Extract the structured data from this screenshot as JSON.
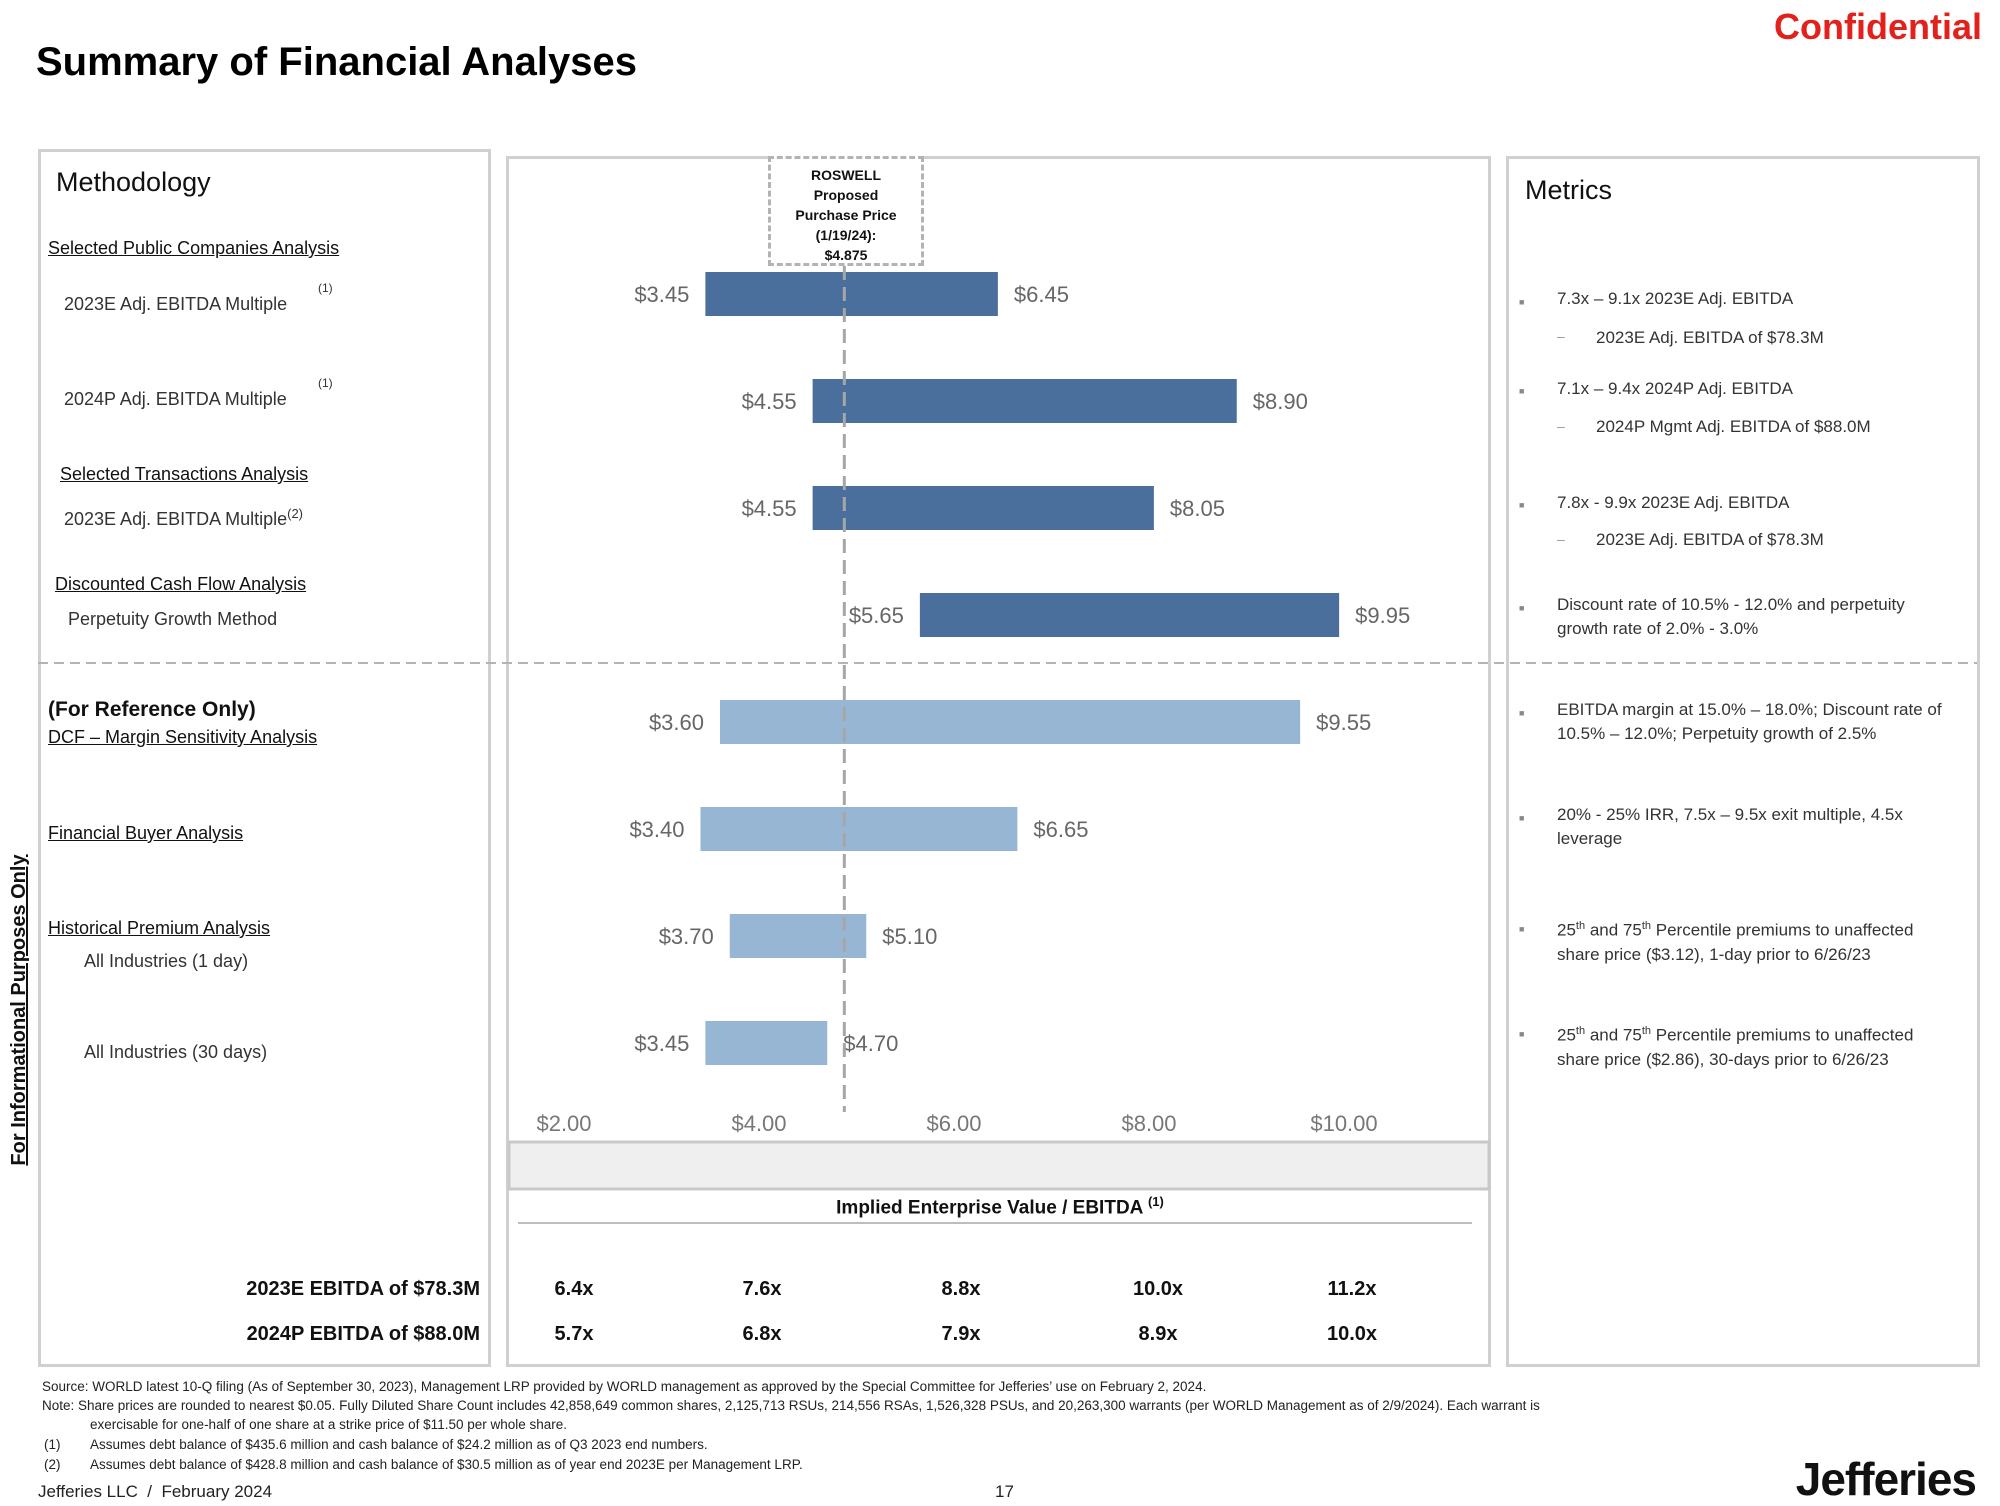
{
  "header": {
    "title": "Summary of Financial Analyses",
    "confidential": "Confidential"
  },
  "side_label": "For Informational Purposes Only",
  "methodology": {
    "title": "Methodology",
    "sections": {
      "public_companies": "Selected Public Companies Analysis",
      "ebitda_2023": "2023E Adj. EBITDA Multiple",
      "ebitda_2023_note": "(1)",
      "ebitda_2024": "2024P Adj. EBITDA Multiple",
      "ebitda_2024_note": "(1)",
      "transactions": "Selected Transactions Analysis",
      "txn_ebitda": "2023E Adj. EBITDA Multiple",
      "txn_ebitda_note": "(2)",
      "dcf": "Discounted Cash Flow Analysis",
      "perpetuity": "Perpetuity Growth Method",
      "reference": "(For Reference Only)",
      "dcf_margin": "DCF – Margin Sensitivity Analysis",
      "financial_buyer": "Financial Buyer Analysis",
      "historical_premium": "Historical Premium Analysis",
      "all_ind_1": "All Industries (1 day)",
      "all_ind_30": "All Industries (30 days)"
    }
  },
  "roswell": {
    "line1": "ROSWELL",
    "line2": "Proposed",
    "line3": "Purchase Price",
    "line4": "(1/19/24):",
    "line5": "$4.875"
  },
  "chart_data": {
    "type": "bar",
    "orientation": "horizontal-range",
    "title": "",
    "xlabel": "Implied Enterprise Value / EBITDA",
    "xlabel_note": "(1)",
    "xlim": [
      2,
      10
    ],
    "x_ticks": [
      "$2.00",
      "$4.00",
      "$6.00",
      "$8.00",
      "$10.00"
    ],
    "x_tick_values": [
      2,
      4,
      6,
      8,
      10
    ],
    "reference_line": {
      "value": 4.875,
      "label": "ROSWELL Proposed Purchase Price (1/19/24): $4.875"
    },
    "categories": [
      "2023E Adj. EBITDA Multiple",
      "2024P Adj. EBITDA Multiple",
      "Selected Transactions 2023E Adj. EBITDA Multiple",
      "DCF Perpetuity Growth Method",
      "DCF – Margin Sensitivity Analysis",
      "Financial Buyer Analysis",
      "Historical Premium All Industries (1 day)",
      "Historical Premium All Industries (30 days)"
    ],
    "series": [
      {
        "name": "low",
        "values": [
          3.45,
          4.55,
          4.55,
          5.65,
          3.6,
          3.4,
          3.7,
          3.45
        ],
        "labels": [
          "$3.45",
          "$4.55",
          "$4.55",
          "$5.65",
          "$3.60",
          "$3.40",
          "$3.70",
          "$3.45"
        ]
      },
      {
        "name": "high",
        "values": [
          6.45,
          8.9,
          8.05,
          9.95,
          9.55,
          6.65,
          5.1,
          4.7
        ],
        "labels": [
          "$6.45",
          "$8.90",
          "$8.05",
          "$9.95",
          "$9.55",
          "$6.65",
          "$5.10",
          "$4.70"
        ]
      }
    ],
    "group": [
      "primary",
      "primary",
      "primary",
      "primary",
      "reference",
      "reference",
      "reference",
      "reference"
    ],
    "colors": {
      "primary": "#4a6f9c",
      "reference": "#97b6d3"
    },
    "multiples": {
      "rows": [
        {
          "label": "2023E EBITDA of $78.3M",
          "values": [
            "6.4x",
            "7.6x",
            "8.8x",
            "10.0x",
            "11.2x"
          ]
        },
        {
          "label": "2024P EBITDA of $88.0M",
          "values": [
            "5.7x",
            "6.8x",
            "7.9x",
            "8.9x",
            "10.0x"
          ]
        }
      ]
    }
  },
  "metrics": {
    "title": "Metrics",
    "items": [
      {
        "main": "7.3x – 9.1x 2023E Adj. EBITDA",
        "sub": "2023E Adj. EBITDA of $78.3M"
      },
      {
        "main": "7.1x – 9.4x 2024P Adj. EBITDA",
        "sub": "2024P Mgmt Adj. EBITDA of $88.0M"
      },
      {
        "main": "7.8x - 9.9x 2023E Adj. EBITDA",
        "sub": "2023E Adj. EBITDA of $78.3M"
      },
      {
        "main": "Discount rate of 10.5% - 12.0% and perpetuity growth rate of 2.0% - 3.0%"
      },
      {
        "main": "EBITDA margin at 15.0% – 18.0%; Discount rate of 10.5% – 12.0%; Perpetuity growth of 2.5%"
      },
      {
        "main": "20% - 25% IRR, 7.5x – 9.5x exit multiple, 4.5x leverage"
      },
      {
        "sup1": "th",
        "sup2": "th",
        "pre": "25",
        "mid": " and 75",
        "post": " Percentile premiums to unaffected share price ($3.12), 1-day prior to 6/26/23"
      },
      {
        "sup1": "th",
        "sup2": "th",
        "pre": "25",
        "mid": " and 75",
        "post": " Percentile premiums to unaffected share price ($2.86), 30-days prior to 6/26/23"
      }
    ],
    "bullet": "■",
    "dash": "–"
  },
  "footer": {
    "source": "Source: WORLD latest 10-Q filing (As of September 30, 2023), Management LRP provided by WORLD management as approved by the Special Committee for Jefferies’ use on February 2, 2024.",
    "note1": "Note: Share prices are rounded to nearest $0.05. Fully Diluted Share Count includes 42,858,649 common shares, 2,125,713 RSUs, 214,556 RSAs, 1,526,328 PSUs, and 20,263,300 warrants (per WORLD Management as of 2/9/2024). Each warrant is",
    "note2": "exercisable for one-half of one share at a strike price of $11.50 per whole share.",
    "fn1_num": "(1)",
    "fn1": "Assumes debt balance of $435.6 million and cash balance of $24.2 million as of Q3 2023 end numbers.",
    "fn2_num": "(2)",
    "fn2": "Assumes debt balance of $428.8 million and cash balance of $30.5 million as of year end 2023E per Management LRP.",
    "company_date": "Jefferies LLC  /  February 2024",
    "page": "17",
    "logo": "Jefferies"
  }
}
